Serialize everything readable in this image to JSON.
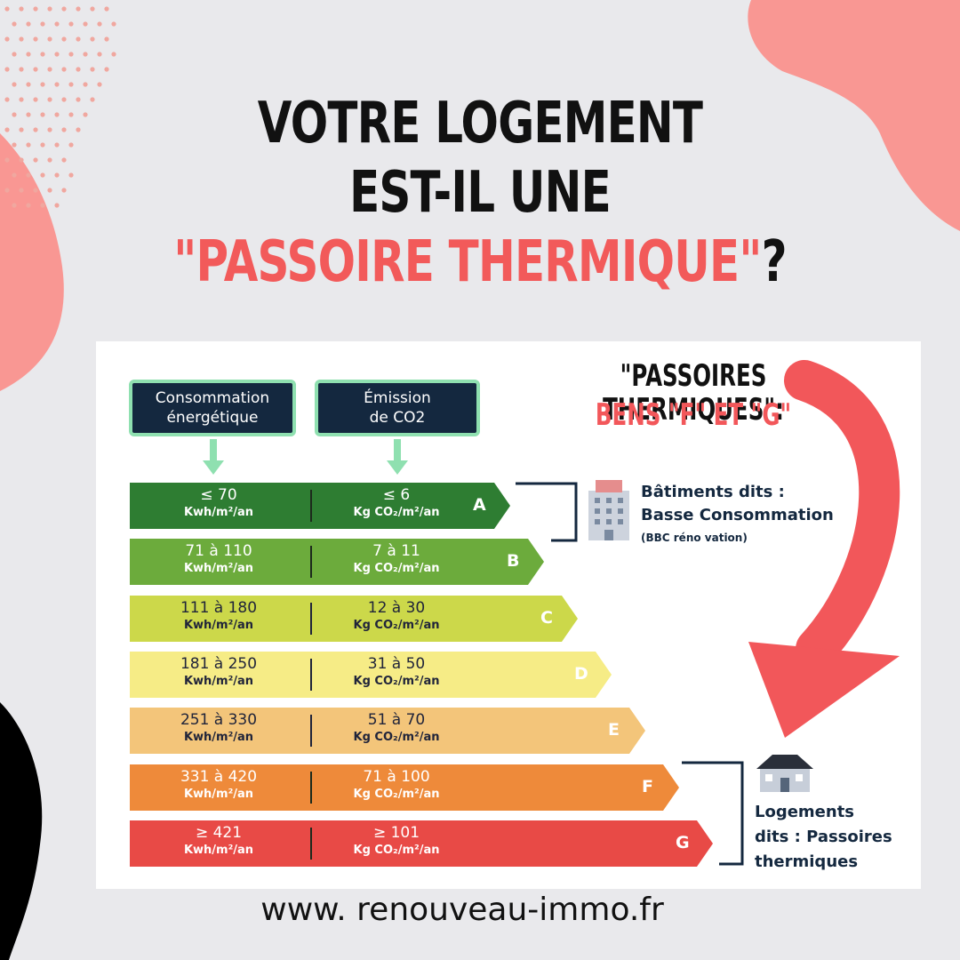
{
  "headline": {
    "line1": "VOTRE LOGEMENT",
    "line2": "EST-IL UNE",
    "line3_accent": "\"PASSOIRE THERMIQUE\"",
    "line3_end": "?"
  },
  "note": {
    "line1": "\"PASSOIRES THERMIQUES\":",
    "line2": "BENS \"F\" ET \"G\""
  },
  "column_headers": {
    "consumption": [
      "Consommation",
      "énergétique"
    ],
    "emission": [
      "Émission",
      "de CO2"
    ]
  },
  "chart_data": {
    "type": "table",
    "classes": [
      {
        "letter": "A",
        "consumption": "≤ 70",
        "consumption_unit": "Kwh/m²/an",
        "emission": "≤ 6",
        "emission_unit": "Kg CO₂/m²/an",
        "color": "#2e7d32"
      },
      {
        "letter": "B",
        "consumption": "71 à 110",
        "consumption_unit": "Kwh/m²/an",
        "emission": "7 à 11",
        "emission_unit": "Kg CO₂/m²/an",
        "color": "#6cab3c"
      },
      {
        "letter": "C",
        "consumption": "111 à 180",
        "consumption_unit": "Kwh/m²/an",
        "emission": "12 à 30",
        "emission_unit": "Kg CO₂/m²/an",
        "color": "#ccd84a"
      },
      {
        "letter": "D",
        "consumption": "181 à 250",
        "consumption_unit": "Kwh/m²/an",
        "emission": "31 à 50",
        "emission_unit": "Kg CO₂/m²/an",
        "color": "#f6ec86"
      },
      {
        "letter": "E",
        "consumption": "251 à 330",
        "consumption_unit": "Kwh/m²/an",
        "emission": "51 à 70",
        "emission_unit": "Kg CO₂/m²/an",
        "color": "#f3c57a"
      },
      {
        "letter": "F",
        "consumption": "331 à 420",
        "consumption_unit": "Kwh/m²/an",
        "emission": "71 à 100",
        "emission_unit": "Kg CO₂/m²/an",
        "color": "#ee8a3a"
      },
      {
        "letter": "G",
        "consumption": "≥ 421",
        "consumption_unit": "Kwh/m²/an",
        "emission": "≥ 101",
        "emission_unit": "Kg CO₂/m²/an",
        "color": "#e84a46"
      }
    ]
  },
  "group_bbc": {
    "title_line1": "Bâtiments dits :",
    "title_line2": "Basse Consommation",
    "subtitle": "(BBC réno vation)"
  },
  "group_passoires": {
    "line1": "Logements",
    "line2": "dits : Passoires",
    "line3": "thermiques"
  },
  "website": "www. renouveau-immo.fr"
}
